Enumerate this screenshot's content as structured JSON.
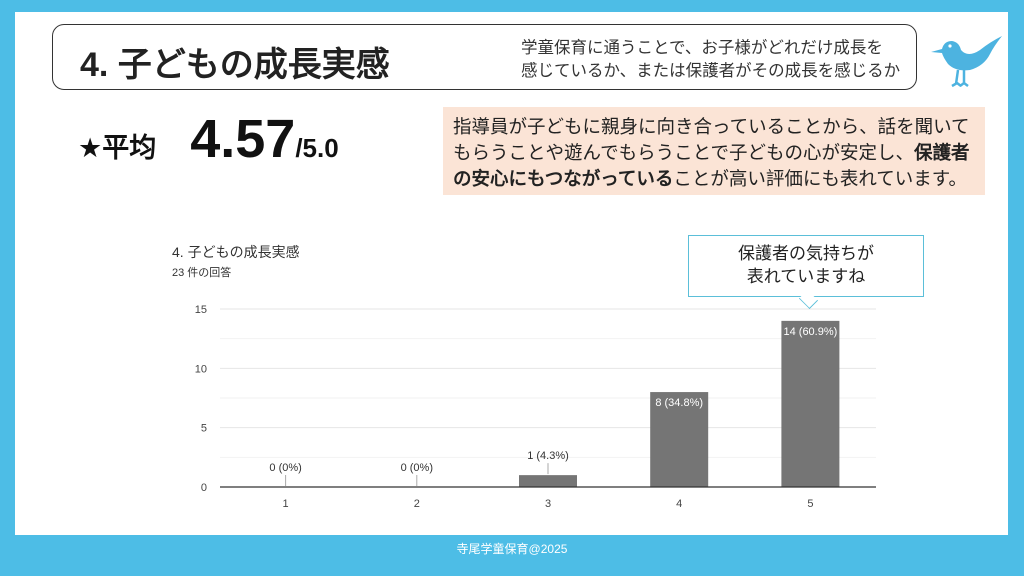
{
  "header": {
    "title": "4. 子どもの成長実感",
    "subtitle_lines": [
      "学童保育に通うことで、お子様がどれだけ成長を",
      "感じているか、または保護者がその成長を感じるか"
    ]
  },
  "average": {
    "label": "★平均",
    "value": "4.57",
    "max": "/5.0"
  },
  "note": {
    "part1": "指導員が子どもに親身に向き合っていることから、話を聞いてもらうことや遊んでもらうことで子どもの心が安定し、",
    "bold": "保護者の安心にもつながっている",
    "part2": "ことが高い評価にも表れています。"
  },
  "callout": {
    "lines": [
      "保護者の気持ちが",
      "表れていますね"
    ]
  },
  "chart_data": {
    "type": "bar",
    "title": "4. 子どもの成長実感",
    "subtitle": "23 件の回答",
    "categories": [
      "1",
      "2",
      "3",
      "4",
      "5"
    ],
    "values": [
      0,
      0,
      1,
      8,
      14
    ],
    "labels": [
      "0 (0%)",
      "0 (0%)",
      "1 (4.3%)",
      "8 (34.8%)",
      "14 (60.9%)"
    ],
    "yticks": [
      "0",
      "5",
      "10",
      "15"
    ],
    "ylim": [
      0,
      15
    ],
    "bar_color": "#757575",
    "grid": true
  },
  "footer": "寺尾学童保育@2025"
}
